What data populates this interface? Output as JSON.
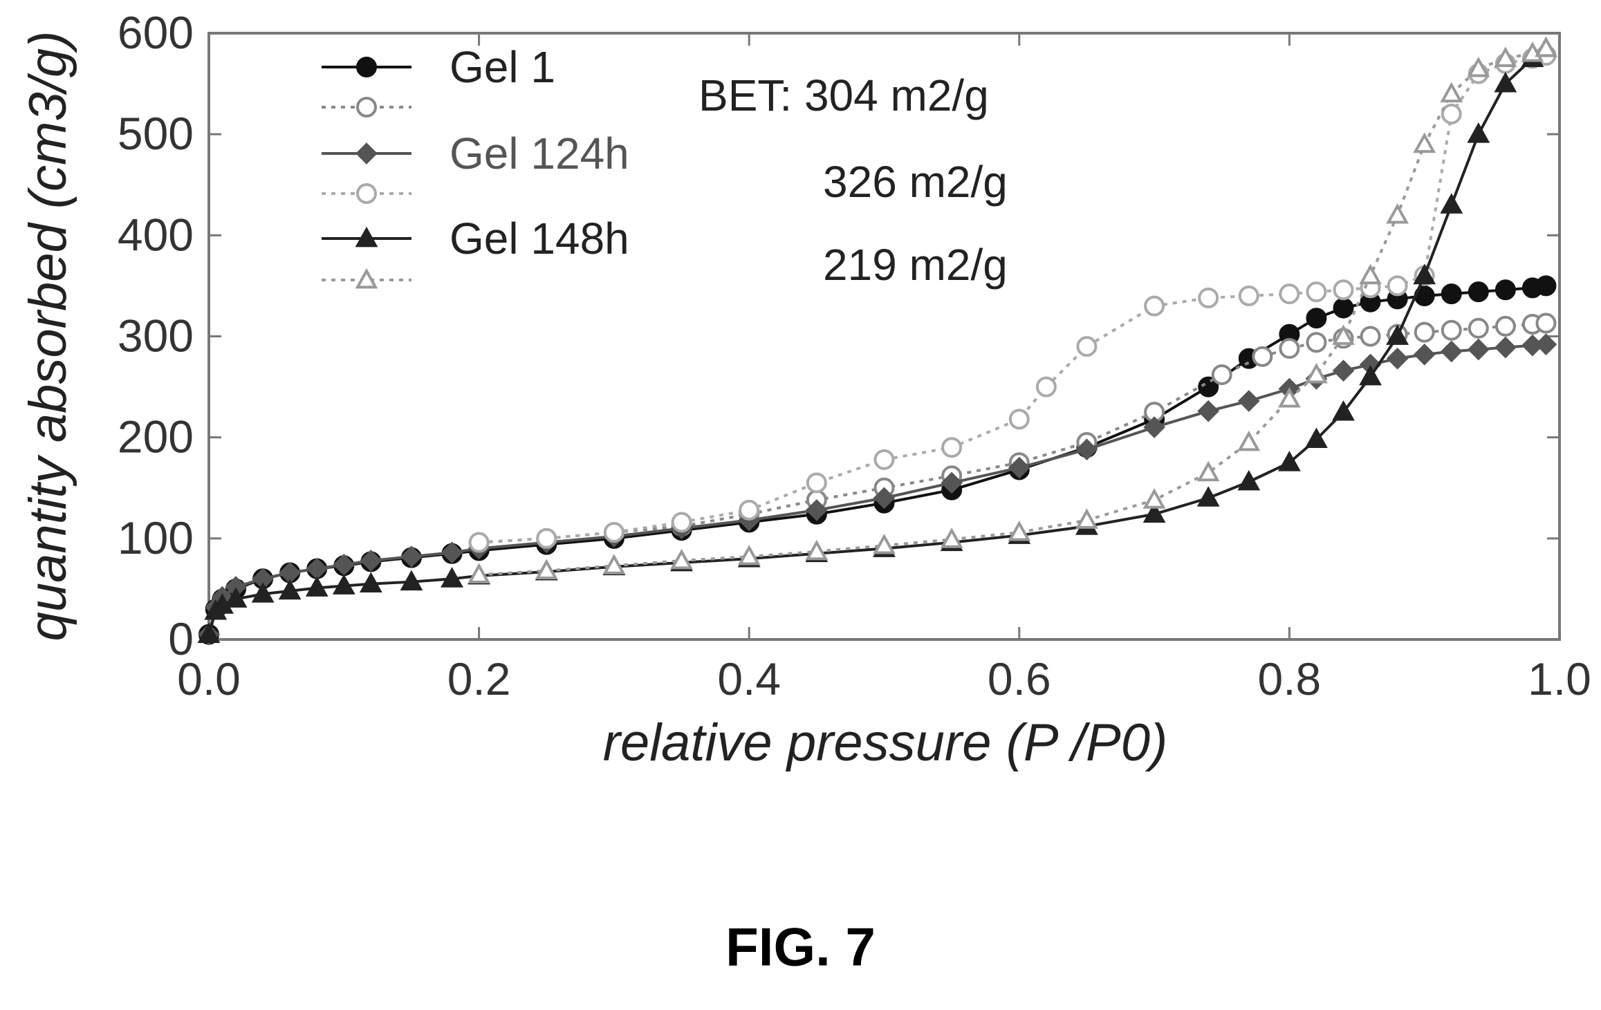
{
  "figure_caption": "FIG. 7",
  "chart_data": {
    "type": "scatter",
    "xlabel": "relative pressure (P /P0)",
    "ylabel": "quantity absorbed (cm3/g)",
    "xlim": [
      0.0,
      1.0
    ],
    "ylim": [
      0,
      600
    ],
    "x_ticks": [
      "0.0",
      "0.2",
      "0.4",
      "0.6",
      "0.8",
      "1.0"
    ],
    "y_ticks": [
      "0",
      "100",
      "200",
      "300",
      "400",
      "500",
      "600"
    ],
    "grid": false,
    "legend_position": "top-left",
    "legend": [
      {
        "label": "Gel 1",
        "series": 0
      },
      {
        "label": "",
        "series": 1
      },
      {
        "label": "Gel 124h",
        "series": 2
      },
      {
        "label": "",
        "series": 3
      },
      {
        "label": "Gel 148h",
        "series": 4
      },
      {
        "label": "",
        "series": 5
      }
    ],
    "annotations": {
      "bet_label": "BET: 304 m2/g",
      "bet_24h": "326 m2/g",
      "bet_48h": "219 m2/g"
    },
    "series": [
      {
        "name": "Gel 1",
        "marker": "filled-circle",
        "line": "solid",
        "color": "#111111",
        "x": [
          0.0,
          0.005,
          0.01,
          0.02,
          0.04,
          0.06,
          0.08,
          0.1,
          0.12,
          0.15,
          0.18,
          0.2,
          0.25,
          0.3,
          0.35,
          0.4,
          0.45,
          0.5,
          0.55,
          0.6,
          0.65,
          0.7,
          0.74,
          0.77,
          0.8,
          0.82,
          0.84,
          0.86,
          0.88,
          0.9,
          0.92,
          0.94,
          0.96,
          0.98,
          0.99
        ],
        "y": [
          5,
          30,
          40,
          50,
          60,
          66,
          70,
          73,
          77,
          81,
          85,
          88,
          94,
          100,
          108,
          116,
          124,
          135,
          148,
          168,
          190,
          218,
          250,
          278,
          302,
          318,
          328,
          334,
          337,
          340,
          342,
          344,
          346,
          348,
          350
        ]
      },
      {
        "name": "Gel 1",
        "marker": "open-circle",
        "line": "dotted",
        "color": "#888888",
        "x": [
          0.2,
          0.25,
          0.3,
          0.35,
          0.4,
          0.45,
          0.5,
          0.55,
          0.6,
          0.65,
          0.7,
          0.75,
          0.78,
          0.8,
          0.82,
          0.84,
          0.86,
          0.88,
          0.9,
          0.92,
          0.94,
          0.96,
          0.98,
          0.99
        ],
        "y": [
          96,
          100,
          106,
          112,
          124,
          138,
          150,
          162,
          175,
          195,
          225,
          262,
          280,
          288,
          294,
          298,
          300,
          302,
          304,
          306,
          308,
          310,
          312,
          313
        ]
      },
      {
        "name": "Gel 124h",
        "marker": "filled-diamond",
        "line": "solid",
        "color": "#555555",
        "x": [
          0.0,
          0.005,
          0.01,
          0.02,
          0.04,
          0.06,
          0.08,
          0.1,
          0.12,
          0.15,
          0.18,
          0.2,
          0.25,
          0.3,
          0.35,
          0.4,
          0.45,
          0.5,
          0.55,
          0.6,
          0.65,
          0.7,
          0.74,
          0.77,
          0.8,
          0.82,
          0.84,
          0.86,
          0.88,
          0.9,
          0.92,
          0.94,
          0.96,
          0.98,
          0.99
        ],
        "y": [
          5,
          32,
          42,
          52,
          60,
          66,
          70,
          74,
          78,
          82,
          86,
          90,
          96,
          102,
          110,
          118,
          128,
          140,
          155,
          170,
          188,
          210,
          226,
          236,
          248,
          258,
          266,
          272,
          278,
          282,
          285,
          287,
          289,
          291,
          292
        ]
      },
      {
        "name": "Gel 124h",
        "marker": "open-circle",
        "line": "dotted",
        "color": "#aaaaaa",
        "x": [
          0.2,
          0.25,
          0.3,
          0.35,
          0.4,
          0.45,
          0.5,
          0.55,
          0.6,
          0.62,
          0.65,
          0.7,
          0.74,
          0.77,
          0.8,
          0.82,
          0.84,
          0.86,
          0.88,
          0.9,
          0.92,
          0.94,
          0.96,
          0.98,
          0.99
        ],
        "y": [
          96,
          100,
          106,
          116,
          128,
          155,
          178,
          190,
          218,
          250,
          290,
          330,
          338,
          340,
          342,
          344,
          346,
          348,
          350,
          360,
          520,
          560,
          570,
          575,
          578
        ]
      },
      {
        "name": "Gel 148h",
        "marker": "filled-triangle",
        "line": "solid",
        "color": "#222222",
        "x": [
          0.0,
          0.005,
          0.01,
          0.02,
          0.04,
          0.06,
          0.08,
          0.1,
          0.12,
          0.15,
          0.18,
          0.2,
          0.25,
          0.3,
          0.35,
          0.4,
          0.45,
          0.5,
          0.55,
          0.6,
          0.65,
          0.7,
          0.74,
          0.77,
          0.8,
          0.82,
          0.84,
          0.86,
          0.88,
          0.9,
          0.92,
          0.94,
          0.96,
          0.98,
          0.99
        ],
        "y": [
          5,
          28,
          34,
          40,
          45,
          48,
          51,
          53,
          55,
          57,
          60,
          63,
          67,
          72,
          76,
          80,
          85,
          90,
          96,
          103,
          112,
          124,
          140,
          156,
          175,
          198,
          225,
          260,
          300,
          360,
          430,
          500,
          550,
          575,
          585
        ]
      },
      {
        "name": "Gel 148h",
        "marker": "open-triangle",
        "line": "dotted",
        "color": "#999999",
        "x": [
          0.2,
          0.25,
          0.3,
          0.35,
          0.4,
          0.45,
          0.5,
          0.55,
          0.6,
          0.65,
          0.7,
          0.74,
          0.77,
          0.8,
          0.82,
          0.84,
          0.86,
          0.88,
          0.9,
          0.92,
          0.94,
          0.96,
          0.98,
          0.99
        ],
        "y": [
          64,
          68,
          73,
          78,
          82,
          87,
          93,
          99,
          106,
          118,
          138,
          165,
          195,
          238,
          262,
          300,
          360,
          420,
          490,
          540,
          565,
          575,
          580,
          585
        ]
      }
    ]
  }
}
